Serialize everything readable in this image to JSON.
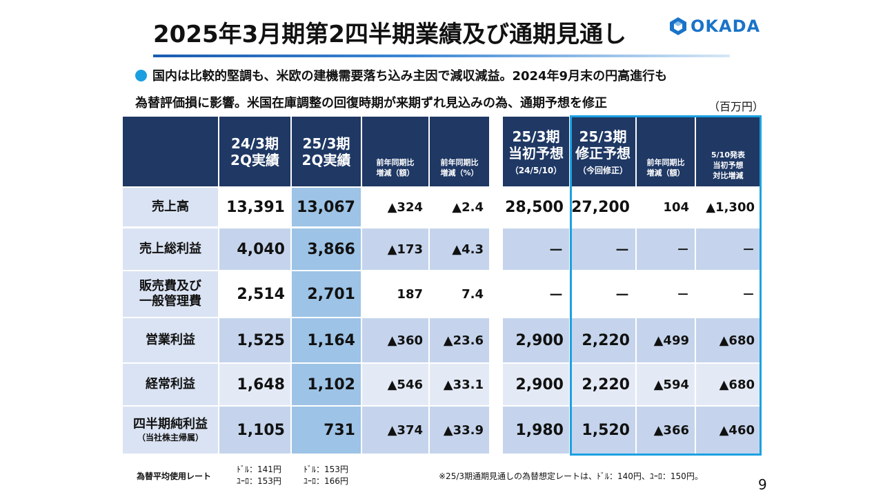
{
  "title": "2025年3月期第2四半期業績及び通期見通し",
  "logo": {
    "text": "OKADA",
    "accent": "#1a73c8"
  },
  "summary": {
    "line1": "国内は比較的堅調も、米欧の建機需要落ち込み主因で減収減益。2024年9月末の円高進行も",
    "line2": "為替評価損に影響。米国在庫調整の回復時期が来期ずれ見込みの為、通期予想を修正"
  },
  "unit": "（百万円）",
  "headers": {
    "prev_2q": "24/3期\n2Q実績",
    "cur_2q": "25/3期\n2Q実績",
    "yoy_amt": "前年同期比\n増減（額）",
    "yoy_pct": "前年同期比\n増減（%）",
    "initial_big": "25/3期\n当初予想",
    "initial_small": "（24/5/10）",
    "revised_big": "25/3期\n修正予想",
    "revised_small": "（今回修正）",
    "fy_yoy_amt": "前年同期比\n増減（額）",
    "vs_initial": "5/10発表\n当初予想\n対比増減"
  },
  "rows": [
    {
      "label": "売上高",
      "sub": "",
      "prev": "13,391",
      "cur": "13,067",
      "yoy_amt": "▲324",
      "yoy_pct": "▲2.4",
      "initial": "28,500",
      "revised": "27,200",
      "fy_yoy": "104",
      "vs_initial": "▲1,300"
    },
    {
      "label": "売上総利益",
      "sub": "",
      "prev": "4,040",
      "cur": "3,866",
      "yoy_amt": "▲173",
      "yoy_pct": "▲4.3",
      "initial": "－",
      "revised": "－",
      "fy_yoy": "－",
      "vs_initial": "－"
    },
    {
      "label": "販売費及び\n一般管理費",
      "sub": "",
      "prev": "2,514",
      "cur": "2,701",
      "yoy_amt": "187",
      "yoy_pct": "7.4",
      "initial": "－",
      "revised": "－",
      "fy_yoy": "－",
      "vs_initial": "－"
    },
    {
      "label": "営業利益",
      "sub": "",
      "prev": "1,525",
      "cur": "1,164",
      "yoy_amt": "▲360",
      "yoy_pct": "▲23.6",
      "initial": "2,900",
      "revised": "2,220",
      "fy_yoy": "▲499",
      "vs_initial": "▲680"
    },
    {
      "label": "経常利益",
      "sub": "",
      "prev": "1,648",
      "cur": "1,102",
      "yoy_amt": "▲546",
      "yoy_pct": "▲33.1",
      "initial": "2,900",
      "revised": "2,220",
      "fy_yoy": "▲594",
      "vs_initial": "▲680"
    },
    {
      "label": "四半期純利益",
      "sub": "（当社株主帰属）",
      "prev": "1,105",
      "cur": "731",
      "yoy_amt": "▲374",
      "yoy_pct": "▲33.9",
      "initial": "1,980",
      "revised": "1,520",
      "fy_yoy": "▲366",
      "vs_initial": "▲460"
    }
  ],
  "footer": {
    "rate_label": "為替平均使用レート",
    "prev_rate_usd": "ﾄﾞﾙ：141円",
    "prev_rate_eur": "ﾕｰﾛ：153円",
    "cur_rate_usd": "ﾄﾞﾙ：153円",
    "cur_rate_eur": "ﾕｰﾛ：166円",
    "note": "※25/3期通期見通しの為替想定レートは、ﾄﾞﾙ：140円、ﾕｰﾛ：150円。"
  },
  "page_number": "9",
  "colors": {
    "header_bg": "#1f3864",
    "label_bg": "#dae3f3",
    "current_col": "#9dc3e6",
    "highlight_border": "#1ba1e2",
    "bullet": "#1b9fe0"
  }
}
